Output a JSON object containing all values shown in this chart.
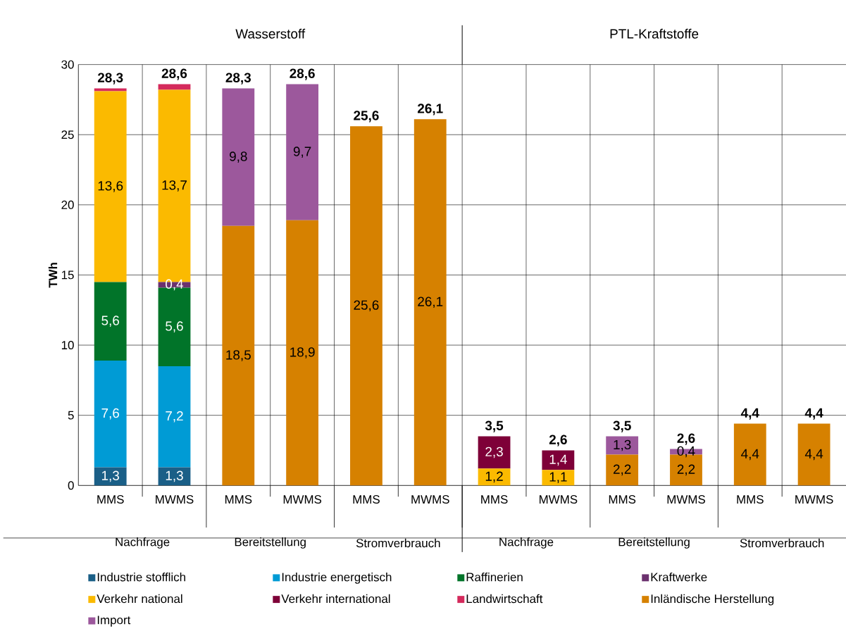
{
  "chart_data": {
    "type": "bar",
    "stacked": true,
    "ylabel": "TWh",
    "categories": [
      "MMS",
      "MWMS",
      "MMS",
      "MWMS",
      "MMS",
      "MWMS",
      "MMS",
      "MWMS",
      "MMS",
      "MWMS",
      "MMS",
      "MWMS"
    ],
    "annotations": [
      "Wasserstoff",
      "PTL-Kraftstoffe",
      "Nachfrage",
      "Bereitstellung",
      "Stromverbrauch",
      "Nachfrage",
      "Bereitstellung",
      "Stromverbrauch"
    ],
    "series": [
      {
        "name": "Industrie stofflich",
        "color": "#1a5f87",
        "values": [
          1.3,
          1.3,
          null,
          null,
          null,
          null,
          null,
          null,
          null,
          null,
          null,
          null
        ],
        "value_labels": [
          "1,3",
          "1,3",
          null,
          null,
          null,
          null,
          null,
          null,
          null,
          null,
          null,
          null
        ]
      },
      {
        "name": "Industrie energetisch",
        "color": "#009bd5",
        "values": [
          7.6,
          7.2,
          null,
          null,
          null,
          null,
          null,
          null,
          null,
          null,
          null,
          null
        ],
        "value_labels": [
          "7,6",
          "7,2",
          null,
          null,
          null,
          null,
          null,
          null,
          null,
          null,
          null,
          null
        ]
      },
      {
        "name": "Raffinerien",
        "color": "#017429",
        "values": [
          5.6,
          5.6,
          null,
          null,
          null,
          null,
          null,
          null,
          null,
          null,
          null,
          null
        ],
        "value_labels": [
          "5,6",
          "5,6",
          null,
          null,
          null,
          null,
          null,
          null,
          null,
          null,
          null,
          null
        ]
      },
      {
        "name": "Kraftwerke",
        "color": "#6b316e",
        "values": [
          null,
          0.4,
          null,
          null,
          null,
          null,
          null,
          null,
          null,
          null,
          null,
          null
        ],
        "value_labels": [
          null,
          "0,4",
          null,
          null,
          null,
          null,
          null,
          null,
          null,
          null,
          null,
          null
        ]
      },
      {
        "name": "Verkehr national",
        "color": "#fbba00",
        "values": [
          13.6,
          13.7,
          null,
          null,
          null,
          null,
          1.2,
          1.1,
          null,
          null,
          null,
          null
        ],
        "value_labels": [
          "13,6",
          "13,7",
          null,
          null,
          null,
          null,
          "1,2",
          "1,1",
          null,
          null,
          null,
          null
        ]
      },
      {
        "name": "Verkehr international",
        "color": "#7e0038",
        "values": [
          null,
          null,
          null,
          null,
          null,
          null,
          2.3,
          1.4,
          null,
          null,
          null,
          null
        ],
        "value_labels": [
          null,
          null,
          null,
          null,
          null,
          null,
          "2,3",
          "1,4",
          null,
          null,
          null,
          null
        ]
      },
      {
        "name": "Landwirtschaft",
        "color": "#d42a5c",
        "values": [
          0.2,
          0.4,
          null,
          null,
          null,
          null,
          null,
          null,
          null,
          null,
          null,
          null
        ]
      },
      {
        "name": "Inländische Herstellung",
        "color": "#d68100",
        "values": [
          null,
          null,
          18.5,
          18.9,
          25.6,
          26.1,
          null,
          null,
          2.2,
          2.2,
          4.4,
          4.4
        ],
        "value_labels": [
          null,
          null,
          "18,5",
          "18,9",
          "25,6",
          "26,1",
          null,
          null,
          "2,2",
          "2,2",
          "4,4",
          "4,4"
        ]
      },
      {
        "name": "Import",
        "color": "#9c589c",
        "values": [
          null,
          null,
          9.8,
          9.7,
          null,
          null,
          null,
          null,
          1.3,
          0.4,
          null,
          null
        ],
        "value_labels": [
          null,
          null,
          "9,8",
          "9,7",
          null,
          null,
          null,
          null,
          "1,3",
          "0,4",
          null,
          null
        ]
      }
    ],
    "totals": [
      "28,3",
      "28,6",
      "28,3",
      "28,6",
      "25,6",
      "26,1",
      "3,5",
      "2,6",
      "3,5",
      "2,6",
      "4,4",
      "4,4"
    ],
    "ylim": [
      0,
      30
    ],
    "yticks": [
      0,
      5,
      10,
      15,
      20,
      25,
      30
    ],
    "grid": true,
    "legend": "bottom"
  }
}
